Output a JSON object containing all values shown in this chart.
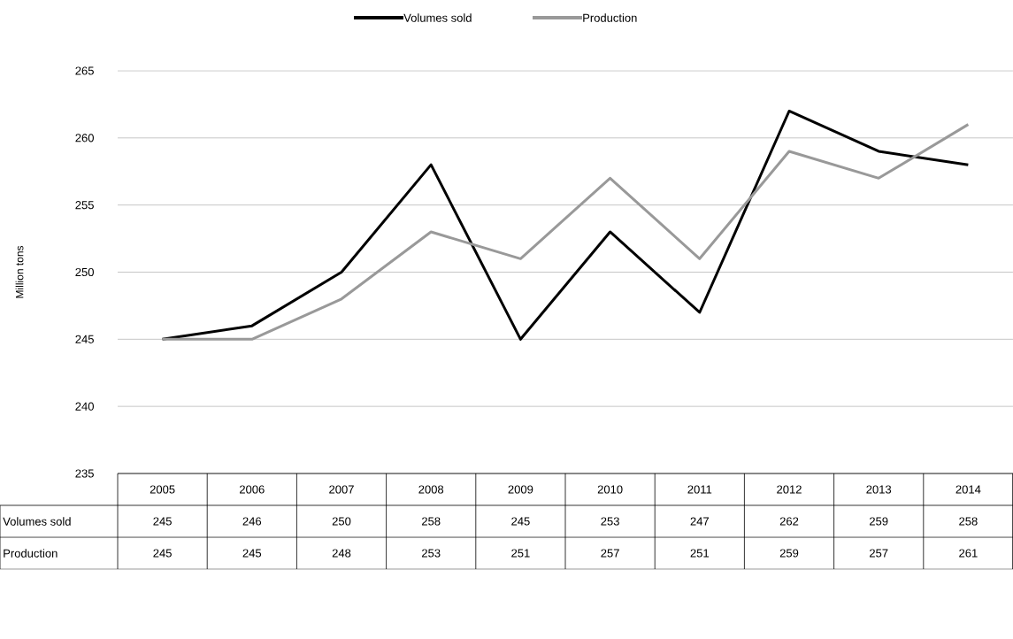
{
  "chart_data": {
    "type": "line",
    "ylabel": "Million tons",
    "categories": [
      "2005",
      "2006",
      "2007",
      "2008",
      "2009",
      "2010",
      "2011",
      "2012",
      "2013",
      "2014"
    ],
    "series": [
      {
        "name": "Volumes sold",
        "color": "#000000",
        "values": [
          245,
          246,
          250,
          258,
          245,
          253,
          247,
          262,
          259,
          258
        ]
      },
      {
        "name": "Production",
        "color": "#999999",
        "values": [
          245,
          245,
          248,
          253,
          251,
          257,
          251,
          259,
          257,
          261
        ]
      }
    ],
    "ylim": [
      235,
      265
    ],
    "yticks": [
      235,
      240,
      245,
      250,
      255,
      260,
      265
    ],
    "grid": "y",
    "legend": "top",
    "data_labels": true
  }
}
